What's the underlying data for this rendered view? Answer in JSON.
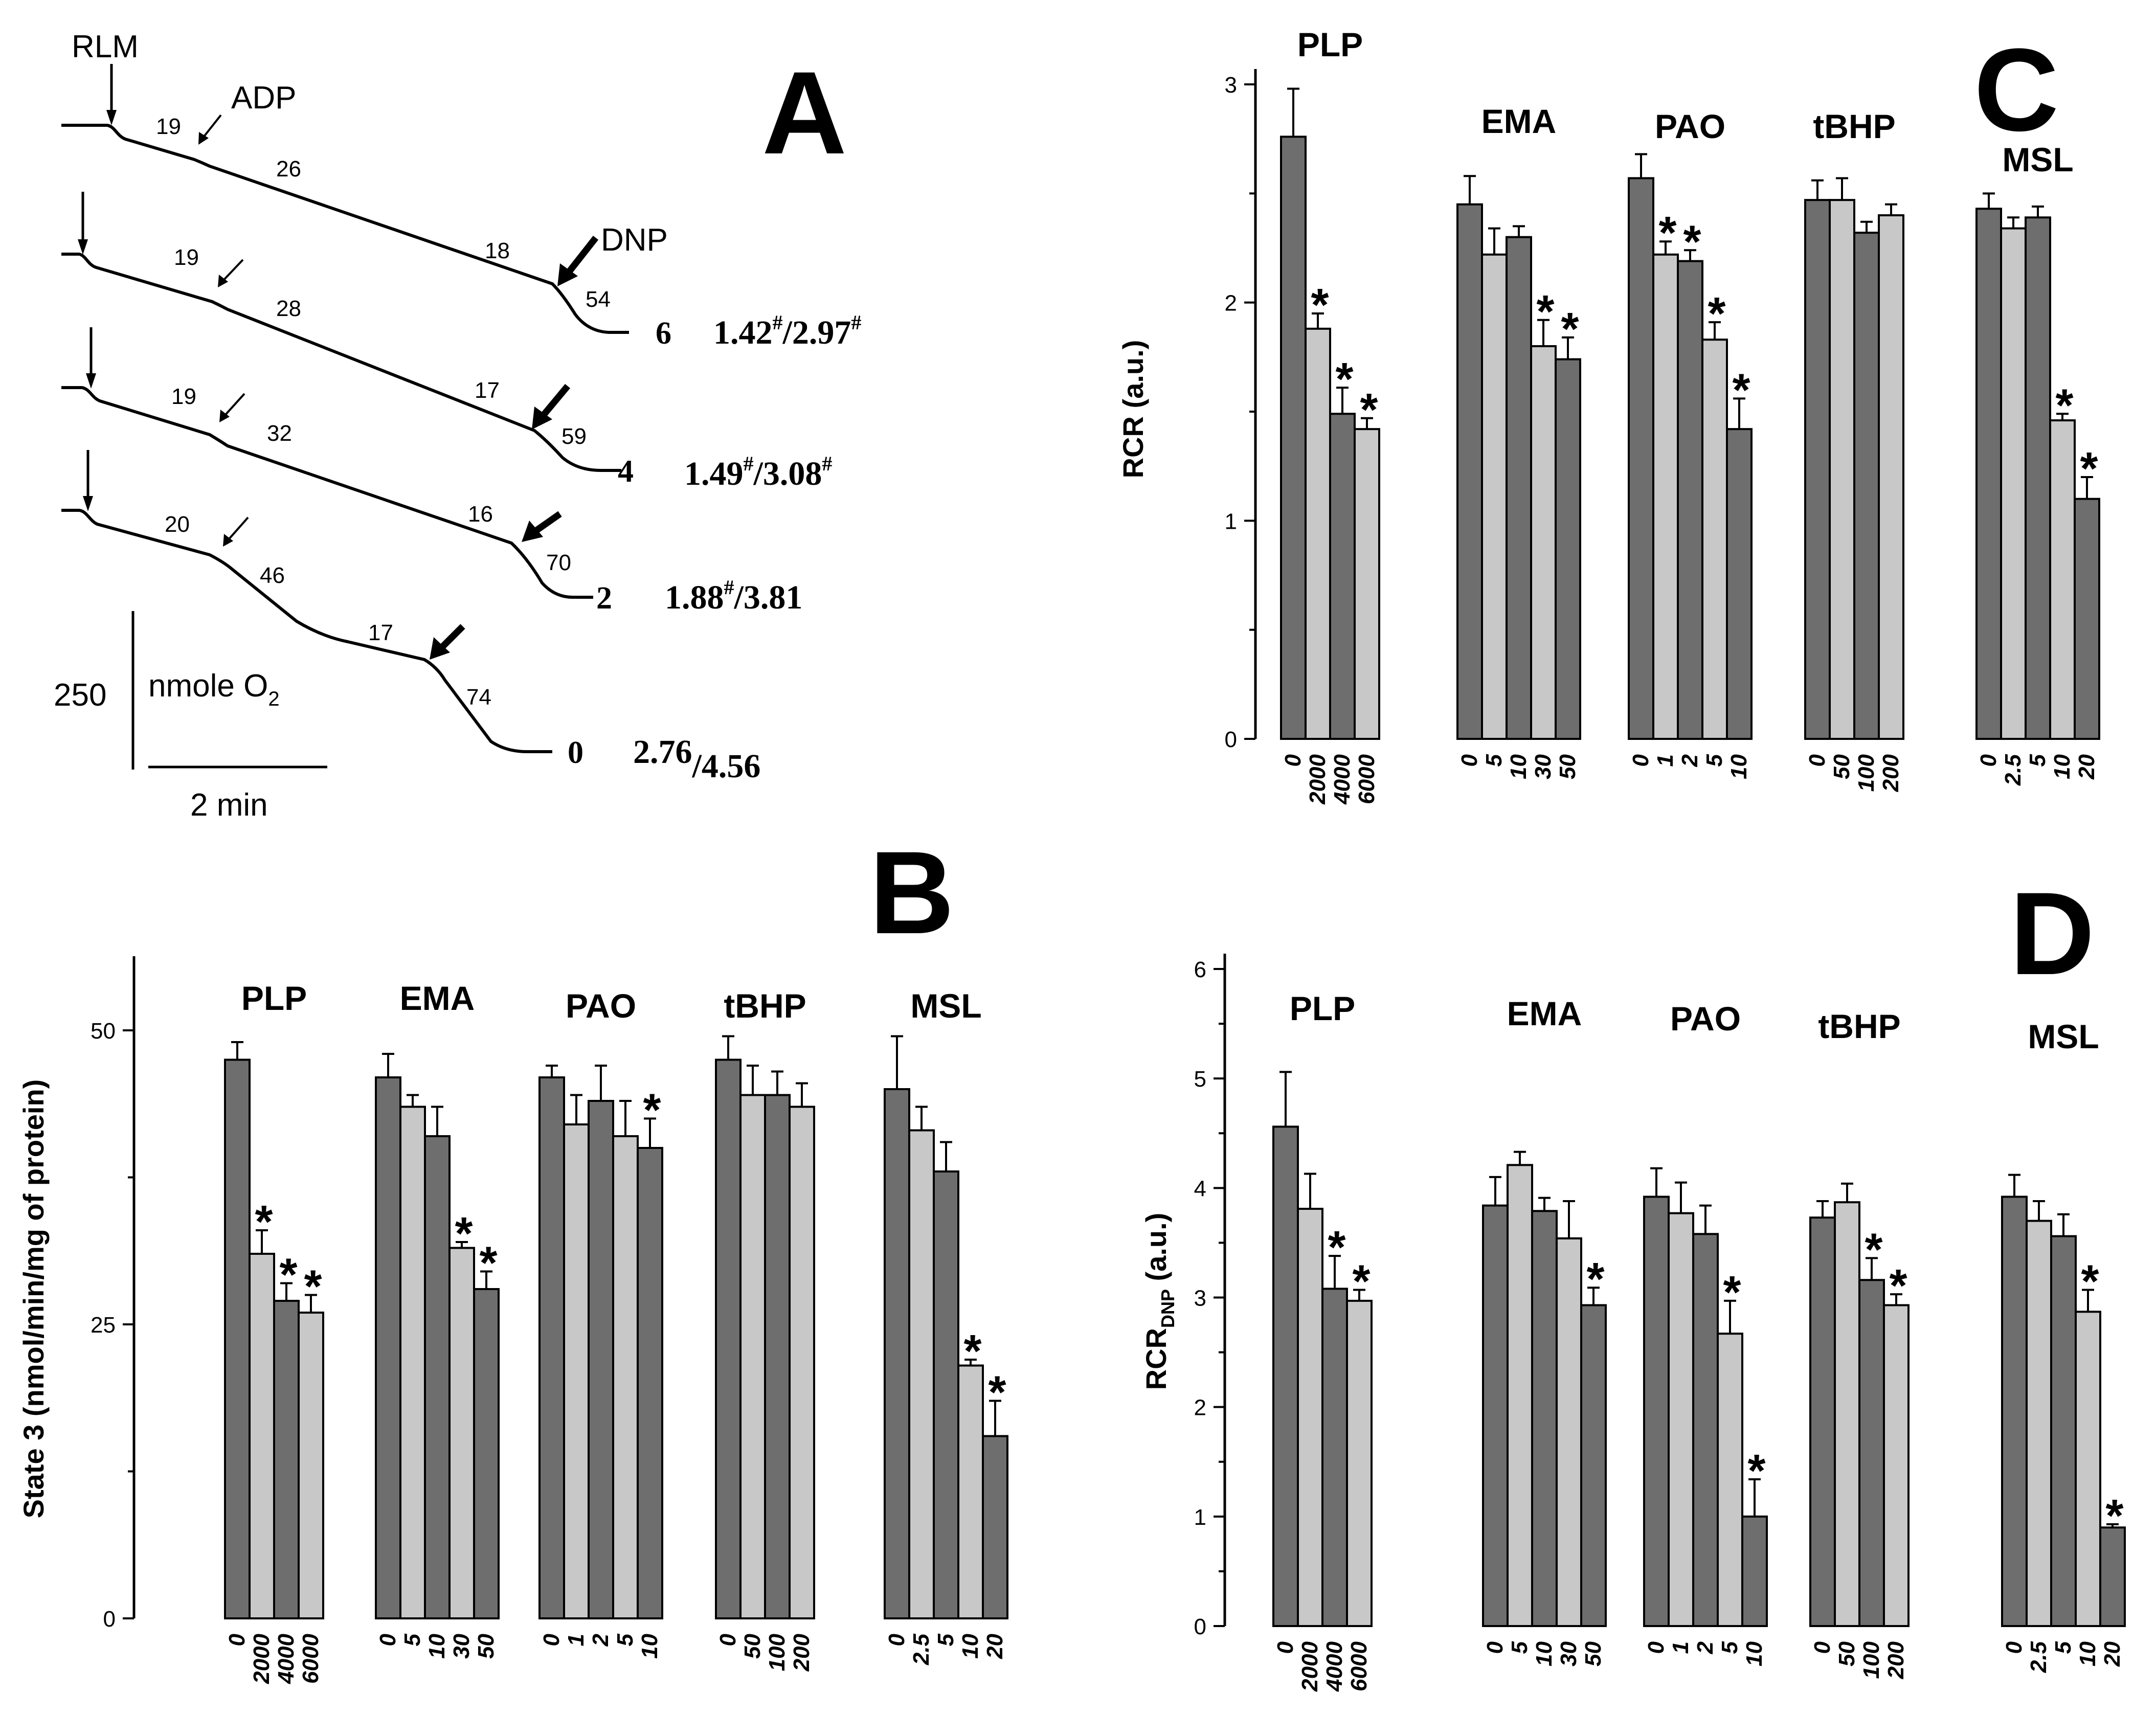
{
  "colors": {
    "dark": "#6e6e6e",
    "light": "#c8c8c8",
    "ink": "#000000"
  },
  "panel_a": {
    "letter": "A",
    "rlm_label": "RLM",
    "adp_label": "ADP",
    "dnp_label": "DNP",
    "scale_value": "250",
    "scale_unit": "nmole O",
    "scale_unit_sub": "2",
    "time_label": "2 min",
    "traces": [
      {
        "concentration": "6",
        "rates": [
          "19",
          "26",
          "18",
          "54"
        ],
        "ratio_a": "1.42",
        "ratio_a_mark": "#",
        "ratio_sep": "/",
        "ratio_b": "2.97",
        "ratio_b_mark": "#"
      },
      {
        "concentration": "4",
        "rates": [
          "19",
          "28",
          "17",
          "59"
        ],
        "ratio_a": "1.49",
        "ratio_a_mark": "#",
        "ratio_sep": "/",
        "ratio_b": "3.08",
        "ratio_b_mark": "#"
      },
      {
        "concentration": "2",
        "rates": [
          "19",
          "32",
          "16",
          "70"
        ],
        "ratio_a": "1.88",
        "ratio_a_mark": "#",
        "ratio_sep": "/",
        "ratio_b": "3.81",
        "ratio_b_mark": ""
      },
      {
        "concentration": "0",
        "rates": [
          "20",
          "46",
          "17",
          "74"
        ],
        "ratio_a": "2.76",
        "ratio_a_mark": "",
        "ratio_sep": "/",
        "ratio_b": "4.56",
        "ratio_b_mark": ""
      }
    ]
  },
  "chart_data": [
    {
      "panel": "B",
      "type": "bar",
      "ylabel": "State 3 (nmol/min/mg of protein)",
      "ylabel_sub": "",
      "ylim": [
        0,
        55
      ],
      "yticks": [
        0,
        25,
        50
      ],
      "groups": [
        {
          "name": "PLP",
          "categories": [
            "0",
            "2000",
            "4000",
            "6000"
          ],
          "values": [
            47.5,
            31,
            27,
            26
          ],
          "errors": [
            1.5,
            2,
            1.5,
            1.5
          ],
          "significant": [
            false,
            true,
            true,
            true
          ]
        },
        {
          "name": "EMA",
          "categories": [
            "0",
            "5",
            "10",
            "30",
            "50"
          ],
          "values": [
            46,
            43.5,
            41,
            31.5,
            28
          ],
          "errors": [
            2,
            1,
            2.5,
            0.5,
            1.5
          ],
          "significant": [
            false,
            false,
            false,
            true,
            true
          ]
        },
        {
          "name": "PAO",
          "categories": [
            "0",
            "1",
            "2",
            "5",
            "10"
          ],
          "values": [
            46,
            42,
            44,
            41,
            40
          ],
          "errors": [
            1,
            2.5,
            3,
            3,
            2.5
          ],
          "significant": [
            false,
            false,
            false,
            false,
            true
          ]
        },
        {
          "name": "tBHP",
          "categories": [
            "0",
            "50",
            "100",
            "200"
          ],
          "values": [
            47.5,
            44.5,
            44.5,
            43.5
          ],
          "errors": [
            2,
            2.5,
            2,
            2
          ],
          "significant": [
            false,
            false,
            false,
            false
          ]
        },
        {
          "name": "MSL",
          "categories": [
            "0",
            "2.5",
            "5",
            "10",
            "20"
          ],
          "values": [
            45,
            41.5,
            38,
            21.5,
            15.5
          ],
          "errors": [
            4.5,
            2,
            2.5,
            0.5,
            3
          ],
          "significant": [
            false,
            false,
            false,
            true,
            true
          ]
        }
      ]
    },
    {
      "panel": "C",
      "type": "bar",
      "ylabel": "RCR (a.u.)",
      "ylabel_sub": "",
      "ylim": [
        0,
        3
      ],
      "yticks": [
        0,
        1,
        2,
        3
      ],
      "groups": [
        {
          "name": "PLP",
          "categories": [
            "0",
            "2000",
            "4000",
            "6000"
          ],
          "values": [
            2.76,
            1.88,
            1.49,
            1.42
          ],
          "errors": [
            0.22,
            0.07,
            0.12,
            0.05
          ],
          "significant": [
            false,
            true,
            true,
            true
          ]
        },
        {
          "name": "EMA",
          "categories": [
            "0",
            "5",
            "10",
            "30",
            "50"
          ],
          "values": [
            2.45,
            2.22,
            2.3,
            1.8,
            1.74
          ],
          "errors": [
            0.13,
            0.12,
            0.05,
            0.12,
            0.1
          ],
          "significant": [
            false,
            false,
            false,
            true,
            true
          ]
        },
        {
          "name": "PAO",
          "categories": [
            "0",
            "1",
            "2",
            "5",
            "10"
          ],
          "values": [
            2.57,
            2.22,
            2.19,
            1.83,
            1.42
          ],
          "errors": [
            0.11,
            0.06,
            0.05,
            0.08,
            0.14
          ],
          "significant": [
            false,
            true,
            true,
            true,
            true
          ]
        },
        {
          "name": "tBHP",
          "categories": [
            "0",
            "50",
            "100",
            "200"
          ],
          "values": [
            2.47,
            2.47,
            2.32,
            2.4
          ],
          "errors": [
            0.09,
            0.1,
            0.05,
            0.05
          ],
          "significant": [
            false,
            false,
            false,
            false
          ]
        },
        {
          "name": "MSL",
          "categories": [
            "0",
            "2.5",
            "5",
            "10",
            "20"
          ],
          "values": [
            2.43,
            2.34,
            2.39,
            1.46,
            1.1
          ],
          "errors": [
            0.07,
            0.05,
            0.05,
            0.03,
            0.1
          ],
          "significant": [
            false,
            false,
            false,
            true,
            true
          ]
        }
      ]
    },
    {
      "panel": "D",
      "type": "bar",
      "ylabel": "RCR",
      "ylabel_sub": "DNP",
      "ylabel_suffix": " (a.u.)",
      "ylim": [
        0,
        6
      ],
      "yticks": [
        0,
        1,
        2,
        3,
        4,
        5,
        6
      ],
      "groups": [
        {
          "name": "PLP",
          "categories": [
            "0",
            "2000",
            "4000",
            "6000"
          ],
          "values": [
            4.56,
            3.81,
            3.08,
            2.97
          ],
          "errors": [
            0.5,
            0.32,
            0.3,
            0.1
          ],
          "significant": [
            false,
            false,
            true,
            true
          ]
        },
        {
          "name": "EMA",
          "categories": [
            "0",
            "5",
            "10",
            "30",
            "50"
          ],
          "values": [
            3.84,
            4.21,
            3.79,
            3.54,
            2.93
          ],
          "errors": [
            0.26,
            0.12,
            0.12,
            0.34,
            0.16
          ],
          "significant": [
            false,
            false,
            false,
            false,
            true
          ]
        },
        {
          "name": "PAO",
          "categories": [
            "0",
            "1",
            "2",
            "5",
            "10"
          ],
          "values": [
            3.92,
            3.77,
            3.58,
            2.67,
            1.0
          ],
          "errors": [
            0.26,
            0.28,
            0.26,
            0.3,
            0.34
          ],
          "significant": [
            false,
            false,
            false,
            true,
            true
          ]
        },
        {
          "name": "tBHP",
          "categories": [
            "0",
            "50",
            "100",
            "200"
          ],
          "values": [
            3.73,
            3.87,
            3.16,
            2.93
          ],
          "errors": [
            0.15,
            0.17,
            0.2,
            0.1
          ],
          "significant": [
            false,
            false,
            true,
            true
          ]
        },
        {
          "name": "MSL",
          "categories": [
            "0",
            "2.5",
            "5",
            "10",
            "20"
          ],
          "values": [
            3.92,
            3.7,
            3.56,
            2.87,
            0.9
          ],
          "errors": [
            0.2,
            0.18,
            0.2,
            0.2,
            0.03
          ],
          "significant": [
            false,
            false,
            false,
            true,
            true
          ]
        }
      ]
    }
  ]
}
